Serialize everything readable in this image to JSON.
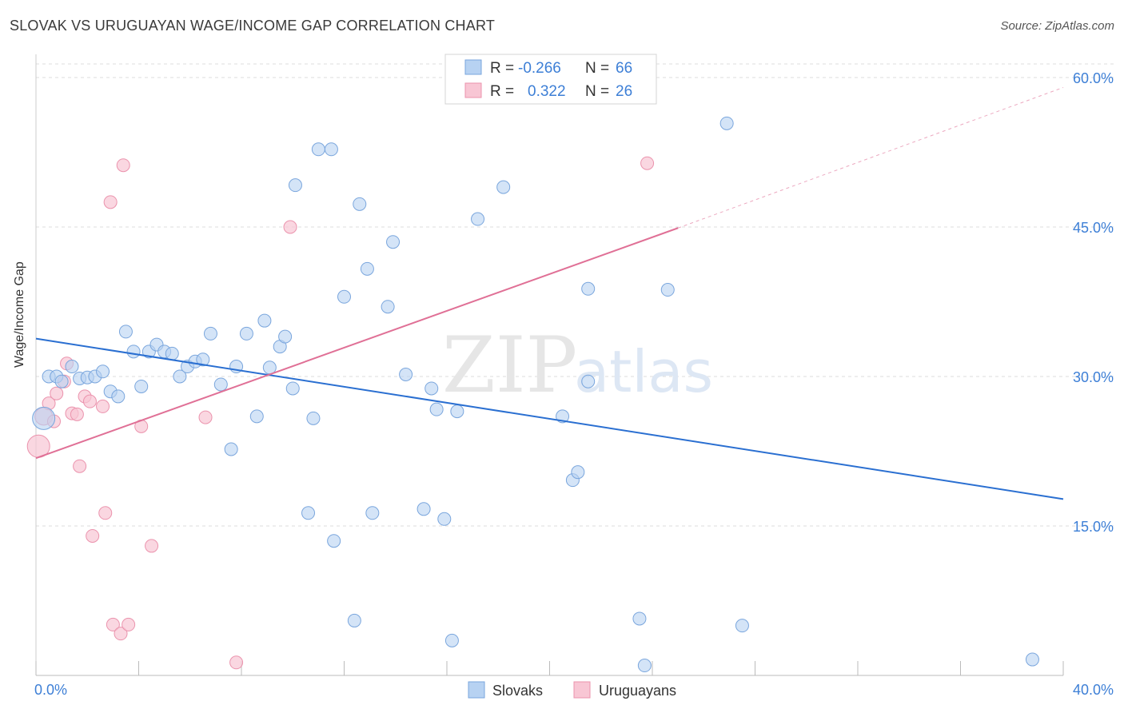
{
  "header": {
    "title": "SLOVAK VS URUGUAYAN WAGE/INCOME GAP CORRELATION CHART",
    "source": "Source: ZipAtlas.com"
  },
  "watermark": {
    "part1": "ZIP",
    "part2": "atlas"
  },
  "colors": {
    "blue_fill": "#b7d2f2",
    "blue_stroke": "#7aa6dd",
    "blue_line": "#2a6fd1",
    "pink_fill": "#f8c6d4",
    "pink_stroke": "#eb93ad",
    "pink_line": "#e07096",
    "axis_label": "#3d7fd6",
    "grid": "#dddddd"
  },
  "legend": {
    "rows": [
      {
        "r_label": "R =",
        "r_value": "-0.266",
        "n_label": "N =",
        "n_value": "66"
      },
      {
        "r_label": "R =",
        "r_value": "0.322",
        "n_label": "N =",
        "n_value": "26"
      }
    ],
    "bottom": [
      "Slovaks",
      "Uruguayans"
    ]
  },
  "chart_data": {
    "type": "scatter",
    "title": "SLOVAK VS URUGUAYAN WAGE/INCOME GAP CORRELATION CHART",
    "xlabel": "",
    "ylabel": "Wage/Income Gap",
    "xlim": [
      0,
      40
    ],
    "ylim": [
      0,
      60
    ],
    "x_tick_labels": [
      "0.0%",
      "40.0%"
    ],
    "y_ticks": [
      15,
      30,
      45,
      60
    ],
    "y_tick_labels": [
      "15.0%",
      "30.0%",
      "45.0%",
      "60.0%"
    ],
    "grid": true,
    "series": [
      {
        "name": "Slovaks",
        "r": -0.266,
        "n": 66,
        "trend": {
          "x0": 0,
          "y0": 33.8,
          "x1": 40,
          "y1": 17.7
        },
        "points": [
          [
            0.3,
            25.8
          ],
          [
            0.5,
            30.0
          ],
          [
            0.8,
            30.0
          ],
          [
            1.0,
            29.5
          ],
          [
            1.4,
            31.0
          ],
          [
            1.7,
            29.8
          ],
          [
            2.0,
            29.9
          ],
          [
            2.3,
            30.0
          ],
          [
            2.6,
            30.5
          ],
          [
            2.9,
            28.5
          ],
          [
            3.2,
            28.0
          ],
          [
            3.5,
            34.5
          ],
          [
            3.8,
            32.5
          ],
          [
            4.1,
            29.0
          ],
          [
            4.4,
            32.5
          ],
          [
            4.7,
            33.2
          ],
          [
            5.0,
            32.5
          ],
          [
            5.3,
            32.3
          ],
          [
            5.6,
            30.0
          ],
          [
            5.9,
            31.0
          ],
          [
            6.2,
            31.5
          ],
          [
            6.5,
            31.7
          ],
          [
            6.8,
            34.3
          ],
          [
            7.2,
            29.2
          ],
          [
            7.6,
            22.7
          ],
          [
            7.8,
            31.0
          ],
          [
            8.2,
            34.3
          ],
          [
            8.6,
            26.0
          ],
          [
            8.9,
            35.6
          ],
          [
            9.1,
            30.9
          ],
          [
            9.5,
            33.0
          ],
          [
            9.7,
            34.0
          ],
          [
            10.0,
            28.8
          ],
          [
            10.1,
            49.2
          ],
          [
            10.6,
            16.3
          ],
          [
            10.8,
            25.8
          ],
          [
            11.0,
            52.8
          ],
          [
            11.5,
            52.8
          ],
          [
            11.6,
            13.5
          ],
          [
            12.0,
            38.0
          ],
          [
            12.4,
            5.5
          ],
          [
            12.6,
            47.3
          ],
          [
            12.9,
            40.8
          ],
          [
            13.1,
            16.3
          ],
          [
            13.7,
            37.0
          ],
          [
            13.9,
            43.5
          ],
          [
            14.4,
            30.2
          ],
          [
            15.1,
            16.7
          ],
          [
            15.4,
            28.8
          ],
          [
            15.6,
            26.7
          ],
          [
            15.9,
            15.7
          ],
          [
            16.2,
            3.5
          ],
          [
            16.4,
            26.5
          ],
          [
            17.2,
            45.8
          ],
          [
            18.2,
            49.0
          ],
          [
            20.5,
            26.0
          ],
          [
            20.9,
            19.6
          ],
          [
            21.1,
            20.4
          ],
          [
            21.5,
            29.5
          ],
          [
            21.5,
            38.8
          ],
          [
            23.5,
            5.7
          ],
          [
            23.7,
            1.0
          ],
          [
            24.6,
            38.7
          ],
          [
            26.9,
            55.4
          ],
          [
            27.5,
            5.0
          ],
          [
            38.8,
            1.6
          ]
        ]
      },
      {
        "name": "Uruguayans",
        "r": 0.322,
        "n": 26,
        "trend": {
          "x0": 0,
          "y0": 21.8,
          "x1": 25,
          "y1": 44.9
        },
        "trend_extension": {
          "x0": 25,
          "y0": 44.9,
          "x1": 40,
          "y1": 59.0
        },
        "points": [
          [
            0.1,
            23.0
          ],
          [
            0.3,
            26.0
          ],
          [
            0.5,
            27.3
          ],
          [
            0.7,
            25.5
          ],
          [
            0.8,
            28.3
          ],
          [
            1.1,
            29.5
          ],
          [
            1.2,
            31.3
          ],
          [
            1.4,
            26.3
          ],
          [
            1.6,
            26.2
          ],
          [
            1.7,
            21.0
          ],
          [
            1.9,
            28.0
          ],
          [
            2.1,
            27.5
          ],
          [
            2.2,
            14.0
          ],
          [
            2.6,
            27.0
          ],
          [
            2.7,
            16.3
          ],
          [
            2.9,
            47.5
          ],
          [
            3.0,
            5.1
          ],
          [
            3.3,
            4.2
          ],
          [
            3.4,
            51.2
          ],
          [
            3.6,
            5.1
          ],
          [
            4.1,
            25.0
          ],
          [
            4.5,
            13.0
          ],
          [
            6.6,
            25.9
          ],
          [
            7.8,
            1.3
          ],
          [
            9.9,
            45.0
          ],
          [
            23.8,
            51.4
          ]
        ]
      }
    ]
  }
}
